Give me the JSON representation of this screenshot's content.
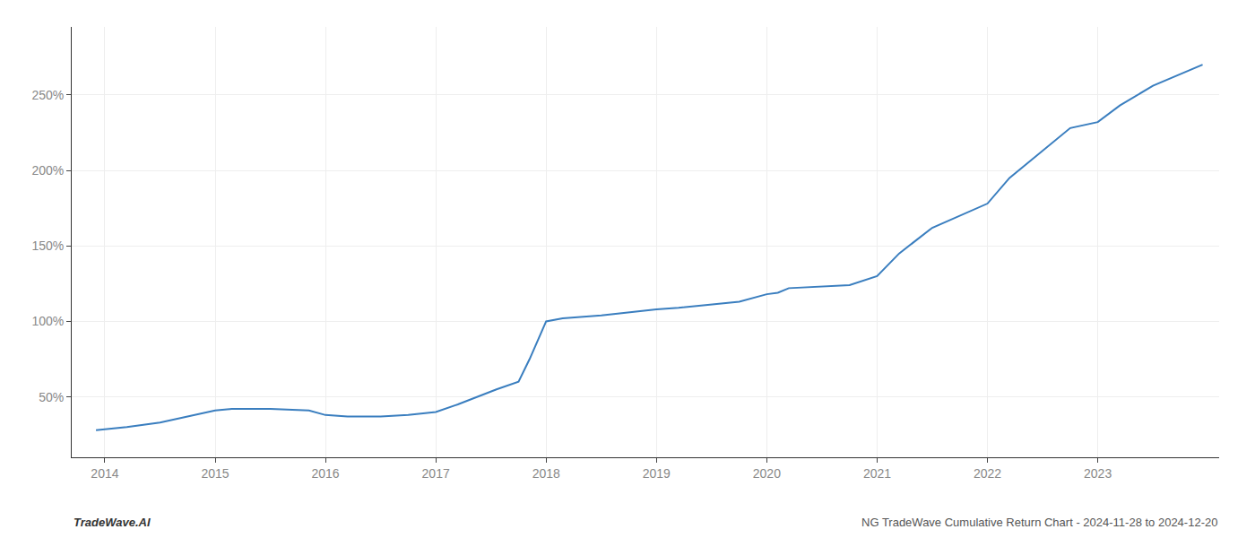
{
  "chart_data": {
    "type": "line",
    "x": [
      2013.92,
      2014.05,
      2014.2,
      2014.5,
      2014.75,
      2015.0,
      2015.15,
      2015.5,
      2015.85,
      2016.0,
      2016.2,
      2016.5,
      2016.75,
      2017.0,
      2017.2,
      2017.55,
      2017.75,
      2017.85,
      2018.0,
      2018.15,
      2018.5,
      2018.75,
      2019.0,
      2019.2,
      2019.5,
      2019.75,
      2020.0,
      2020.1,
      2020.2,
      2020.5,
      2020.75,
      2021.0,
      2021.2,
      2021.5,
      2021.75,
      2022.0,
      2022.2,
      2022.5,
      2022.75,
      2023.0,
      2023.2,
      2023.5,
      2023.75,
      2023.95
    ],
    "values": [
      28,
      29,
      30,
      33,
      37,
      41,
      42,
      42,
      41,
      38,
      37,
      37,
      38,
      40,
      45,
      55,
      60,
      75,
      100,
      102,
      104,
      106,
      108,
      109,
      111,
      113,
      118,
      119,
      122,
      123,
      124,
      130,
      145,
      162,
      170,
      178,
      195,
      213,
      228,
      232,
      243,
      256,
      264,
      270
    ],
    "color": "#3a7ebf",
    "xlim": [
      2013.7,
      2024.1
    ],
    "ylim": [
      10,
      295
    ],
    "xticks": [
      2014,
      2015,
      2016,
      2017,
      2018,
      2019,
      2020,
      2021,
      2022,
      2023
    ],
    "yticks": [
      {
        "value": 50,
        "label": "50%"
      },
      {
        "value": 100,
        "label": "100%"
      },
      {
        "value": 150,
        "label": "150%"
      },
      {
        "value": 200,
        "label": "200%"
      },
      {
        "value": 250,
        "label": "250%"
      }
    ],
    "grid": true,
    "annotations": [
      "TradeWave.AI",
      "NG TradeWave Cumulative Return Chart - 2024-11-28 to 2024-12-20"
    ]
  }
}
